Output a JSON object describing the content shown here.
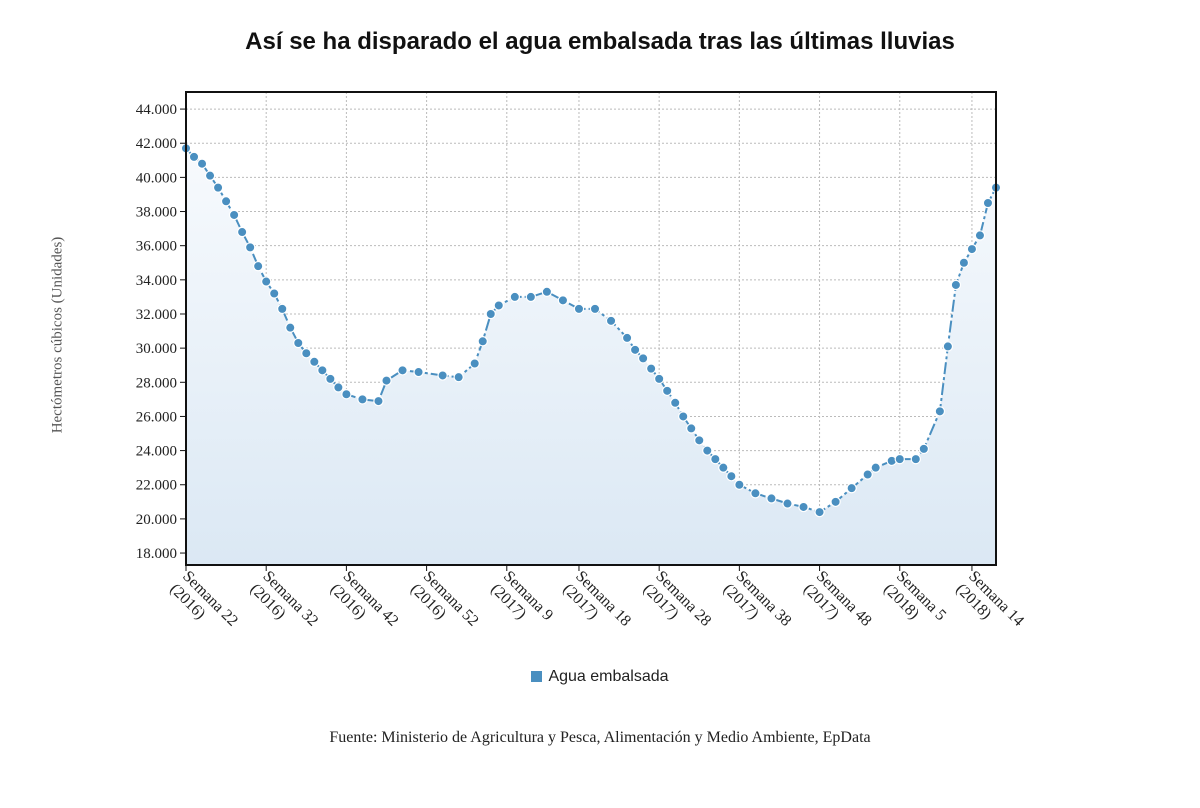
{
  "chart_data": {
    "type": "line",
    "title": "Así se ha disparado el agua embalsada tras las últimas lluvias",
    "ylabel": "Hectómetros cúbicos (Unidades)",
    "xlabel": "",
    "ylim": [
      17300,
      45000
    ],
    "yticks": [
      "18.000",
      "20.000",
      "22.000",
      "24.000",
      "26.000",
      "28.000",
      "30.000",
      "32.000",
      "34.000",
      "36.000",
      "38.000",
      "40.000",
      "42.000",
      "44.000"
    ],
    "ytick_values": [
      18000,
      20000,
      22000,
      24000,
      26000,
      28000,
      30000,
      32000,
      34000,
      36000,
      38000,
      40000,
      42000,
      44000
    ],
    "xticks": [
      {
        "line1": "Semana 22",
        "line2": "(2016)",
        "week_index": 0
      },
      {
        "line1": "Semana 32",
        "line2": "(2016)",
        "week_index": 10
      },
      {
        "line1": "Semana 42",
        "line2": "(2016)",
        "week_index": 20
      },
      {
        "line1": "Semana 52",
        "line2": "(2016)",
        "week_index": 30
      },
      {
        "line1": "Semana 9",
        "line2": "(2017)",
        "week_index": 40
      },
      {
        "line1": "Semana 18",
        "line2": "(2017)",
        "week_index": 49
      },
      {
        "line1": "Semana 28",
        "line2": "(2017)",
        "week_index": 59
      },
      {
        "line1": "Semana 38",
        "line2": "(2017)",
        "week_index": 69
      },
      {
        "line1": "Semana 48",
        "line2": "(2017)",
        "week_index": 79
      },
      {
        "line1": "Semana 5",
        "line2": "(2018)",
        "week_index": 89
      },
      {
        "line1": "Semana 14",
        "line2": "(2018)",
        "week_index": 98
      }
    ],
    "grid": true,
    "legend_position": "bottom",
    "series": [
      {
        "name": "Agua embalsada",
        "color": "#4a8fc0",
        "points": [
          [
            0,
            41700
          ],
          [
            1,
            41200
          ],
          [
            2,
            40800
          ],
          [
            3,
            40100
          ],
          [
            4,
            39400
          ],
          [
            5,
            38600
          ],
          [
            6,
            37800
          ],
          [
            7,
            36800
          ],
          [
            8,
            35900
          ],
          [
            9,
            34800
          ],
          [
            10,
            33900
          ],
          [
            11,
            33200
          ],
          [
            12,
            32300
          ],
          [
            13,
            31200
          ],
          [
            14,
            30300
          ],
          [
            15,
            29700
          ],
          [
            16,
            29200
          ],
          [
            17,
            28700
          ],
          [
            18,
            28200
          ],
          [
            19,
            27700
          ],
          [
            20,
            27300
          ],
          [
            22,
            27000
          ],
          [
            24,
            26900
          ],
          [
            25,
            28100
          ],
          [
            27,
            28700
          ],
          [
            29,
            28600
          ],
          [
            32,
            28400
          ],
          [
            34,
            28300
          ],
          [
            36,
            29100
          ],
          [
            37,
            30400
          ],
          [
            38,
            32000
          ],
          [
            39,
            32500
          ],
          [
            41,
            33000
          ],
          [
            43,
            33000
          ],
          [
            45,
            33300
          ],
          [
            47,
            32800
          ],
          [
            49,
            32300
          ],
          [
            51,
            32300
          ],
          [
            53,
            31600
          ],
          [
            55,
            30600
          ],
          [
            56,
            29900
          ],
          [
            57,
            29400
          ],
          [
            58,
            28800
          ],
          [
            59,
            28200
          ],
          [
            60,
            27500
          ],
          [
            61,
            26800
          ],
          [
            62,
            26000
          ],
          [
            63,
            25300
          ],
          [
            64,
            24600
          ],
          [
            65,
            24000
          ],
          [
            66,
            23500
          ],
          [
            67,
            23000
          ],
          [
            68,
            22500
          ],
          [
            69,
            22000
          ],
          [
            71,
            21500
          ],
          [
            73,
            21200
          ],
          [
            75,
            20900
          ],
          [
            77,
            20700
          ],
          [
            79,
            20400
          ],
          [
            81,
            21000
          ],
          [
            83,
            21800
          ],
          [
            85,
            22600
          ],
          [
            86,
            23000
          ],
          [
            88,
            23400
          ],
          [
            89,
            23500
          ],
          [
            91,
            23500
          ],
          [
            92,
            24100
          ],
          [
            94,
            26300
          ],
          [
            95,
            30100
          ],
          [
            96,
            33700
          ],
          [
            97,
            35000
          ],
          [
            98,
            35800
          ],
          [
            99,
            36600
          ],
          [
            100,
            38500
          ],
          [
            101,
            39400
          ]
        ]
      }
    ],
    "source": "Fuente: Ministerio de Agricultura y Pesca, Alimentación y Medio Ambiente, EpData"
  }
}
